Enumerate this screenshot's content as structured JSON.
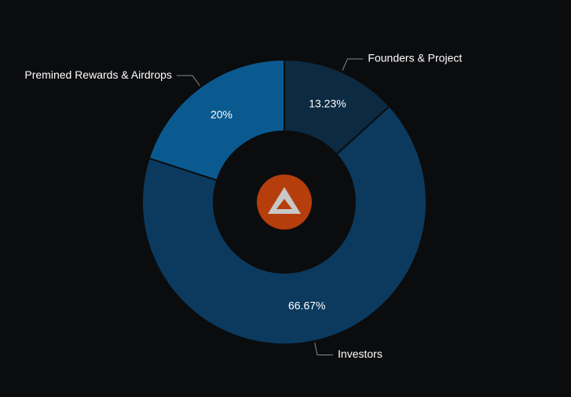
{
  "chart_data": {
    "type": "donut",
    "categories": [
      "Founders & Project",
      "Investors",
      "Premined Rewards & Airdrops"
    ],
    "values": [
      13.23,
      66.67,
      20
    ],
    "value_labels": [
      "13.23%",
      "66.67%",
      "20%"
    ],
    "colors": [
      "#0c2a41",
      "#0b3a5e",
      "#0a5a90"
    ]
  }
}
